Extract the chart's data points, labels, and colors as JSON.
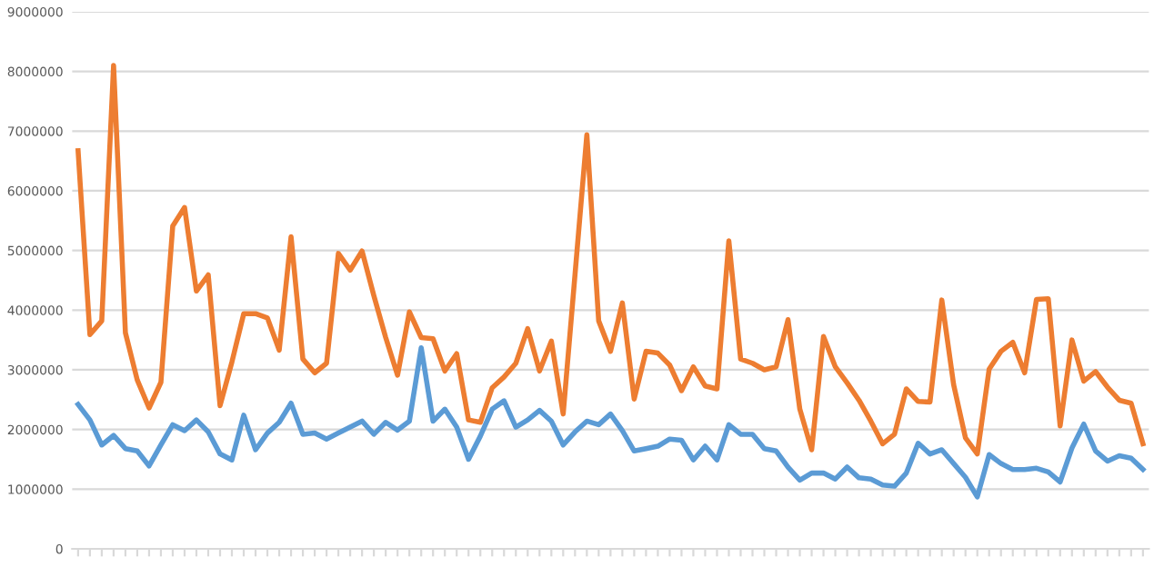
{
  "chart_data": {
    "type": "line",
    "categories": [
      null,
      null,
      null,
      null,
      null,
      null,
      null,
      null,
      null,
      null,
      null,
      null,
      null,
      null,
      null,
      null,
      null,
      null,
      null,
      null,
      null,
      null,
      null,
      null,
      null,
      null,
      null,
      null,
      null,
      null,
      null,
      null,
      null,
      null,
      null,
      null,
      null,
      null,
      null,
      null,
      null,
      null,
      null,
      null,
      null,
      null,
      null,
      null,
      null,
      null,
      null,
      null,
      null,
      null,
      null,
      null,
      null,
      null,
      null,
      null,
      null,
      null,
      null,
      null,
      null,
      null,
      null,
      null,
      null,
      null,
      null,
      null,
      null,
      null,
      null,
      null,
      null,
      null,
      null,
      null,
      null,
      null,
      null,
      null,
      null,
      null,
      null,
      null,
      null,
      null,
      null
    ],
    "series": [
      {
        "color": "#ed7d31",
        "values": [
          6670000,
          3590000,
          3820000,
          8100000,
          3620000,
          2830000,
          2360000,
          2790000,
          5410000,
          5720000,
          4320000,
          4590000,
          2400000,
          3130000,
          3940000,
          3940000,
          3870000,
          3330000,
          5230000,
          3180000,
          2950000,
          3110000,
          4950000,
          4670000,
          4990000,
          4240000,
          3540000,
          2910000,
          3970000,
          3540000,
          3520000,
          2980000,
          3270000,
          2160000,
          2120000,
          2700000,
          2880000,
          3110000,
          3690000,
          2980000,
          3480000,
          2260000,
          4600000,
          6940000,
          3820000,
          3310000,
          4120000,
          2510000,
          3310000,
          3280000,
          3080000,
          2650000,
          3050000,
          2730000,
          2680000,
          5160000,
          3180000,
          3110000,
          3000000,
          3050000,
          3840000,
          2340000,
          1660000,
          3560000,
          3050000,
          2780000,
          2490000,
          2140000,
          1760000,
          1920000,
          2680000,
          2470000,
          2460000,
          4170000,
          2750000,
          1860000,
          1590000,
          3010000,
          3310000,
          3460000,
          2950000,
          4180000,
          4190000,
          2060000,
          3500000,
          2810000,
          2970000,
          2710000,
          2490000,
          2440000,
          1760000
        ]
      },
      {
        "color": "#5b9bd5",
        "values": [
          2420000,
          2160000,
          1740000,
          1900000,
          1680000,
          1640000,
          1390000,
          1740000,
          2080000,
          1980000,
          2160000,
          1960000,
          1590000,
          1490000,
          2240000,
          1660000,
          1940000,
          2120000,
          2440000,
          1920000,
          1940000,
          1840000,
          1940000,
          2040000,
          2140000,
          1920000,
          2120000,
          1990000,
          2140000,
          3370000,
          2140000,
          2340000,
          2040000,
          1500000,
          1890000,
          2340000,
          2480000,
          2040000,
          2160000,
          2320000,
          2140000,
          1740000,
          1960000,
          2140000,
          2080000,
          2260000,
          1980000,
          1640000,
          1680000,
          1720000,
          1840000,
          1820000,
          1490000,
          1720000,
          1490000,
          2080000,
          1920000,
          1920000,
          1680000,
          1640000,
          1370000,
          1150000,
          1270000,
          1270000,
          1170000,
          1370000,
          1190000,
          1170000,
          1070000,
          1050000,
          1270000,
          1770000,
          1590000,
          1660000,
          1430000,
          1200000,
          870000,
          1580000,
          1430000,
          1330000,
          1330000,
          1350000,
          1290000,
          1120000,
          1690000,
          2090000,
          1640000,
          1470000,
          1560000,
          1520000,
          1330000
        ]
      }
    ],
    "ylim": [
      0,
      9000000
    ],
    "yticks": [
      0,
      1000000,
      2000000,
      3000000,
      4000000,
      5000000,
      6000000,
      7000000,
      8000000,
      9000000
    ],
    "grid": "y",
    "marker": "none",
    "line_style": "solid"
  }
}
